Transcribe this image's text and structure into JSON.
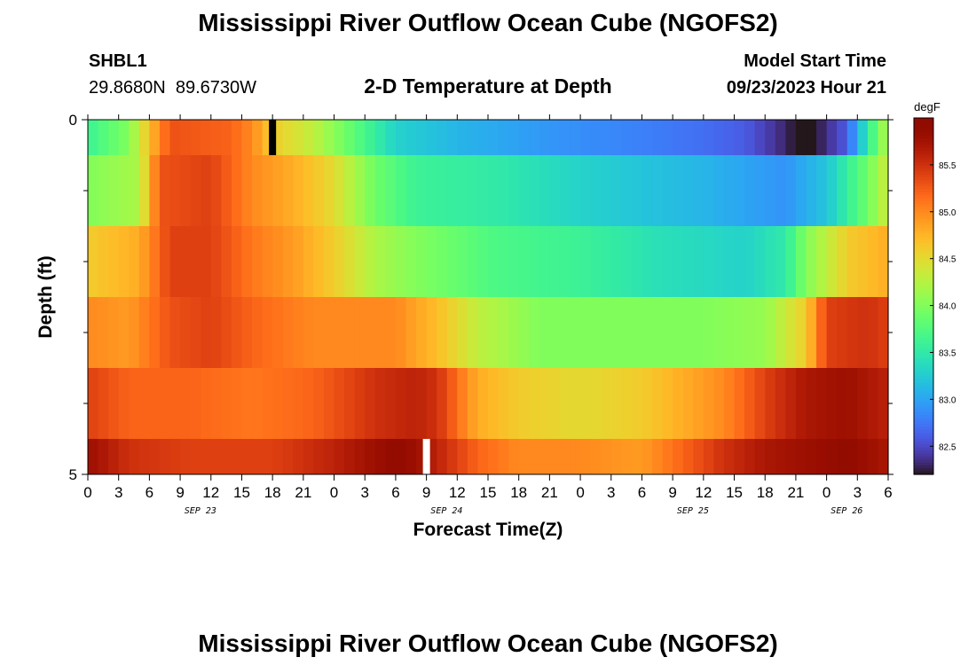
{
  "header": {
    "title": "Mississippi River Outflow Ocean Cube (NGOFS2)",
    "station_id": "SHBL1",
    "station_coords": "29.8680N  89.6730W",
    "plot_title": "2-D Temperature at Depth",
    "model_start_label": "Model Start Time",
    "model_start_value": "09/23/2023 Hour 21"
  },
  "footer": {
    "title_repeat": "Mississippi River Outflow Ocean Cube (NGOFS2)"
  },
  "chart_data": {
    "type": "heatmap",
    "title": "2-D Temperature at Depth",
    "xlabel": "Forecast Time(Z)",
    "ylabel": "Depth (ft)",
    "x_start": "09/23/2023 00Z",
    "x_hours": 78,
    "x_ticks": [
      {
        "hour": 0,
        "label": "0"
      },
      {
        "hour": 3,
        "label": "3"
      },
      {
        "hour": 6,
        "label": "6"
      },
      {
        "hour": 9,
        "label": "9"
      },
      {
        "hour": 12,
        "label": "12"
      },
      {
        "hour": 15,
        "label": "15"
      },
      {
        "hour": 18,
        "label": "18"
      },
      {
        "hour": 21,
        "label": "21"
      },
      {
        "hour": 24,
        "label": "0"
      },
      {
        "hour": 27,
        "label": "3"
      },
      {
        "hour": 30,
        "label": "6"
      },
      {
        "hour": 33,
        "label": "9"
      },
      {
        "hour": 36,
        "label": "12"
      },
      {
        "hour": 39,
        "label": "15"
      },
      {
        "hour": 42,
        "label": "18"
      },
      {
        "hour": 45,
        "label": "21"
      },
      {
        "hour": 48,
        "label": "0"
      },
      {
        "hour": 51,
        "label": "3"
      },
      {
        "hour": 54,
        "label": "6"
      },
      {
        "hour": 57,
        "label": "9"
      },
      {
        "hour": 60,
        "label": "12"
      },
      {
        "hour": 63,
        "label": "15"
      },
      {
        "hour": 66,
        "label": "18"
      },
      {
        "hour": 69,
        "label": "21"
      },
      {
        "hour": 72,
        "label": "0"
      },
      {
        "hour": 75,
        "label": "3"
      },
      {
        "hour": 78,
        "label": "6"
      }
    ],
    "date_labels": [
      {
        "hour": 12,
        "label": "SEP 23"
      },
      {
        "hour": 36,
        "label": "SEP 24"
      },
      {
        "hour": 60,
        "label": "SEP 25"
      },
      {
        "hour": 75,
        "label": "SEP 26"
      }
    ],
    "y_range": [
      0,
      5
    ],
    "y_tick_labels": [
      {
        "depth": 0,
        "label": "0"
      },
      {
        "depth": 5,
        "label": "5"
      }
    ],
    "y_minor_ticks": [
      1,
      2,
      3,
      4
    ],
    "depth_layers": [
      {
        "top": 0.0,
        "bottom": 0.5,
        "keys": [
          [
            0,
            83.6
          ],
          [
            4,
            84.0
          ],
          [
            6,
            84.7
          ],
          [
            8,
            85.3
          ],
          [
            14,
            85.2
          ],
          [
            16,
            85.0
          ],
          [
            18,
            84.6
          ],
          [
            22,
            84.3
          ],
          [
            26,
            83.8
          ],
          [
            30,
            83.3
          ],
          [
            36,
            83.1
          ],
          [
            46,
            82.9
          ],
          [
            54,
            82.8
          ],
          [
            60,
            82.7
          ],
          [
            64,
            82.6
          ],
          [
            68,
            82.3
          ],
          [
            70,
            82.1
          ],
          [
            74,
            82.6
          ],
          [
            76,
            83.5
          ],
          [
            78,
            84.3
          ]
        ]
      },
      {
        "top": 0.5,
        "bottom": 1.5,
        "keys": [
          [
            0,
            84.0
          ],
          [
            5,
            84.2
          ],
          [
            7,
            85.3
          ],
          [
            12,
            85.4
          ],
          [
            16,
            85.0
          ],
          [
            20,
            84.8
          ],
          [
            24,
            84.5
          ],
          [
            28,
            83.9
          ],
          [
            32,
            83.6
          ],
          [
            40,
            83.5
          ],
          [
            48,
            83.3
          ],
          [
            60,
            83.1
          ],
          [
            68,
            82.9
          ],
          [
            72,
            83.2
          ],
          [
            76,
            83.9
          ],
          [
            78,
            84.4
          ]
        ]
      },
      {
        "top": 1.5,
        "bottom": 2.5,
        "keys": [
          [
            0,
            84.6
          ],
          [
            5,
            84.8
          ],
          [
            8,
            85.4
          ],
          [
            12,
            85.4
          ],
          [
            16,
            85.1
          ],
          [
            20,
            84.9
          ],
          [
            24,
            84.6
          ],
          [
            28,
            84.2
          ],
          [
            32,
            84.0
          ],
          [
            40,
            83.7
          ],
          [
            48,
            83.6
          ],
          [
            56,
            83.4
          ],
          [
            64,
            83.3
          ],
          [
            68,
            83.5
          ],
          [
            70,
            84.0
          ],
          [
            74,
            84.6
          ],
          [
            78,
            84.8
          ]
        ]
      },
      {
        "top": 2.5,
        "bottom": 3.5,
        "keys": [
          [
            0,
            85.0
          ],
          [
            4,
            84.9
          ],
          [
            8,
            85.3
          ],
          [
            12,
            85.4
          ],
          [
            16,
            85.2
          ],
          [
            22,
            85.0
          ],
          [
            30,
            85.0
          ],
          [
            34,
            84.7
          ],
          [
            38,
            84.3
          ],
          [
            44,
            84.0
          ],
          [
            52,
            84.0
          ],
          [
            60,
            84.0
          ],
          [
            66,
            84.1
          ],
          [
            70,
            84.6
          ],
          [
            72,
            85.4
          ],
          [
            76,
            85.5
          ],
          [
            78,
            85.4
          ]
        ]
      },
      {
        "top": 3.5,
        "bottom": 4.5,
        "keys": [
          [
            0,
            85.4
          ],
          [
            4,
            85.2
          ],
          [
            10,
            85.2
          ],
          [
            16,
            85.1
          ],
          [
            22,
            85.2
          ],
          [
            28,
            85.5
          ],
          [
            32,
            85.6
          ],
          [
            34,
            85.5
          ],
          [
            38,
            84.8
          ],
          [
            42,
            84.6
          ],
          [
            48,
            84.5
          ],
          [
            54,
            84.6
          ],
          [
            58,
            84.8
          ],
          [
            62,
            85.0
          ],
          [
            66,
            85.4
          ],
          [
            70,
            85.7
          ],
          [
            74,
            85.8
          ],
          [
            78,
            85.6
          ]
        ]
      },
      {
        "top": 4.5,
        "bottom": 5.0,
        "keys": [
          [
            0,
            85.8
          ],
          [
            4,
            85.5
          ],
          [
            10,
            85.4
          ],
          [
            18,
            85.4
          ],
          [
            24,
            85.6
          ],
          [
            30,
            85.9
          ],
          [
            32,
            85.8
          ],
          [
            34,
            85.6
          ],
          [
            38,
            85.2
          ],
          [
            42,
            85.0
          ],
          [
            48,
            85.0
          ],
          [
            54,
            84.9
          ],
          [
            58,
            85.2
          ],
          [
            62,
            85.5
          ],
          [
            66,
            85.7
          ],
          [
            70,
            85.8
          ],
          [
            74,
            85.9
          ],
          [
            78,
            85.7
          ]
        ]
      }
    ],
    "missing_cells": [
      {
        "hour": 18.0,
        "top": 0.0,
        "bottom": 0.5,
        "color": "#000000"
      },
      {
        "hour": 9.0,
        "day_offset": 24,
        "top": 4.5,
        "bottom": 5.0,
        "color": "#ffffff"
      }
    ],
    "colorbar": {
      "unit": "degF",
      "range": [
        82.2,
        86.0
      ],
      "ticks": [
        "82.5",
        "83.0",
        "83.5",
        "84.0",
        "84.5",
        "85.0",
        "85.5"
      ],
      "colormap": "turbo"
    }
  }
}
